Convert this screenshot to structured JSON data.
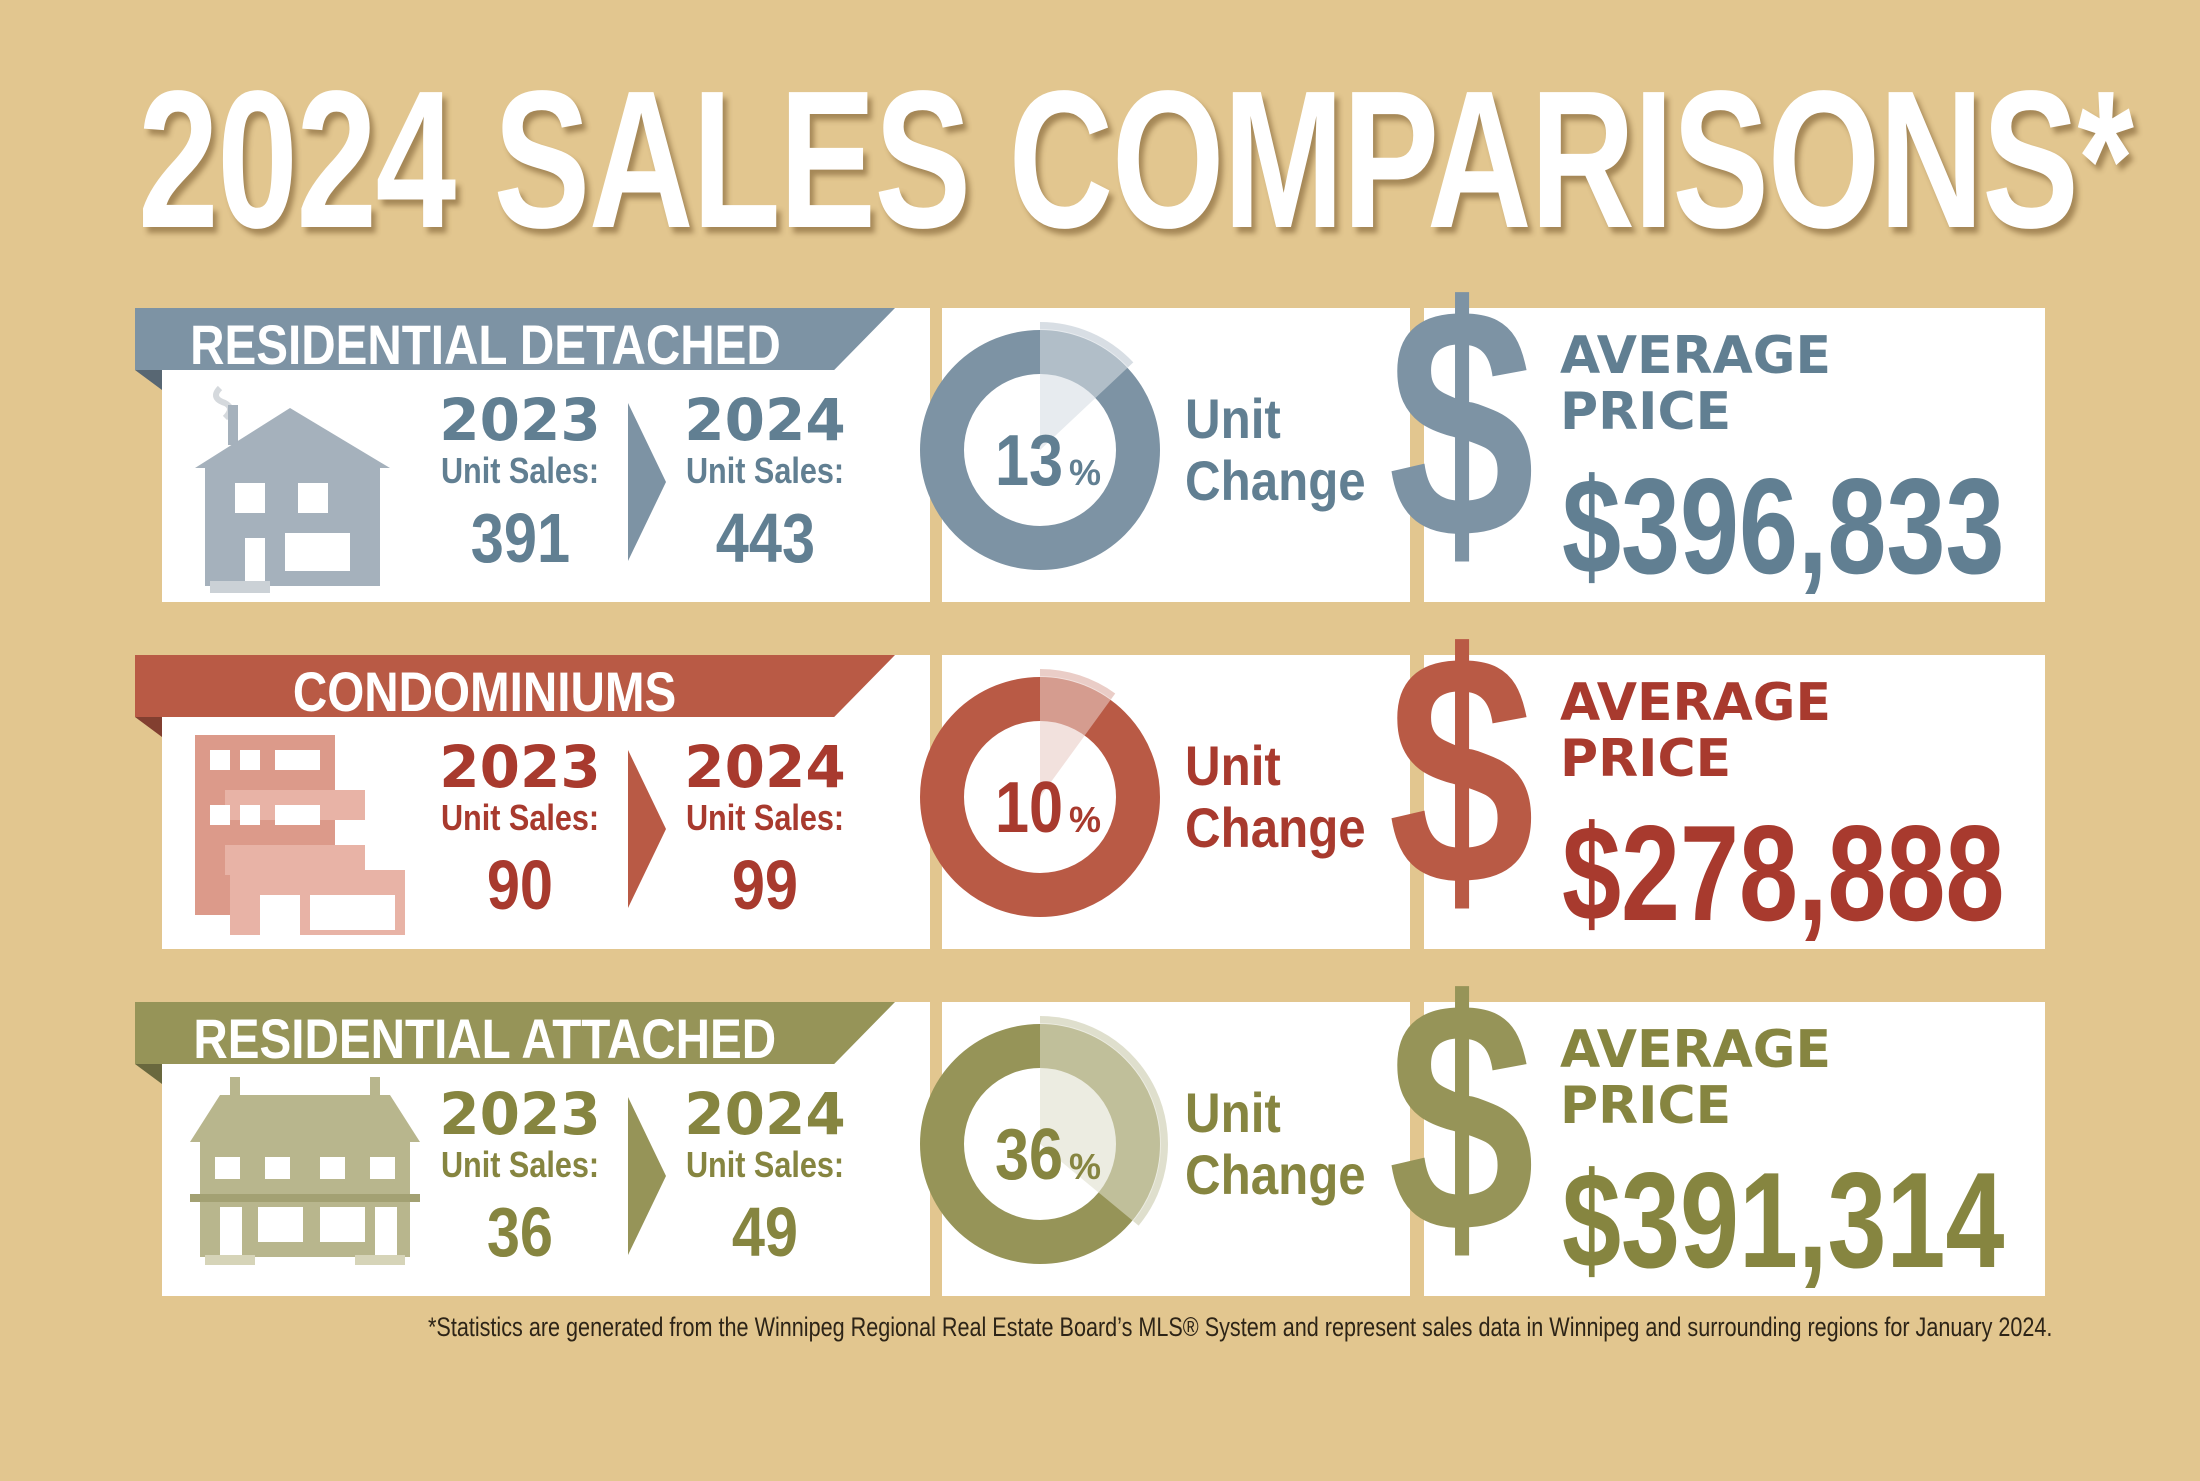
{
  "title": "2024 SALES COMPARISONS*",
  "footnote": "*Statistics are generated from the Winnipeg Regional Real Estate Board’s MLS® System and represent sales data in Winnipeg and surrounding regions for January 2024.",
  "labels": {
    "year_prev": "2023",
    "year_curr": "2024",
    "unit_sales": "Unit Sales:",
    "unit": "Unit",
    "change": "Change",
    "average": "AVERAGE",
    "price": "PRICE",
    "dollar_sign": "$",
    "percent_sign": "%"
  },
  "categories": [
    {
      "name": "RESIDENTIAL DETACHED",
      "icon": "detached-house-icon",
      "sales_2023": "391",
      "sales_2024": "443",
      "unit_change_pct": "13",
      "average_price": "$396,833",
      "bar_color": "#7d93a4",
      "text_color": "#617f92",
      "icon_color": "#a5b1bc"
    },
    {
      "name": "CONDOMINIUMS",
      "icon": "condo-building-icon",
      "sales_2023": "90",
      "sales_2024": "99",
      "unit_change_pct": "10",
      "average_price": "$278,888",
      "bar_color": "#b95a45",
      "text_color": "#a83a2e",
      "icon_color": "#dc9a8a"
    },
    {
      "name": "RESIDENTIAL ATTACHED",
      "icon": "attached-house-icon",
      "sales_2023": "36",
      "sales_2024": "49",
      "unit_change_pct": "36",
      "average_price": "$391,314",
      "bar_color": "#969458",
      "text_color": "#868540",
      "icon_color": "#b8b68d"
    }
  ]
}
